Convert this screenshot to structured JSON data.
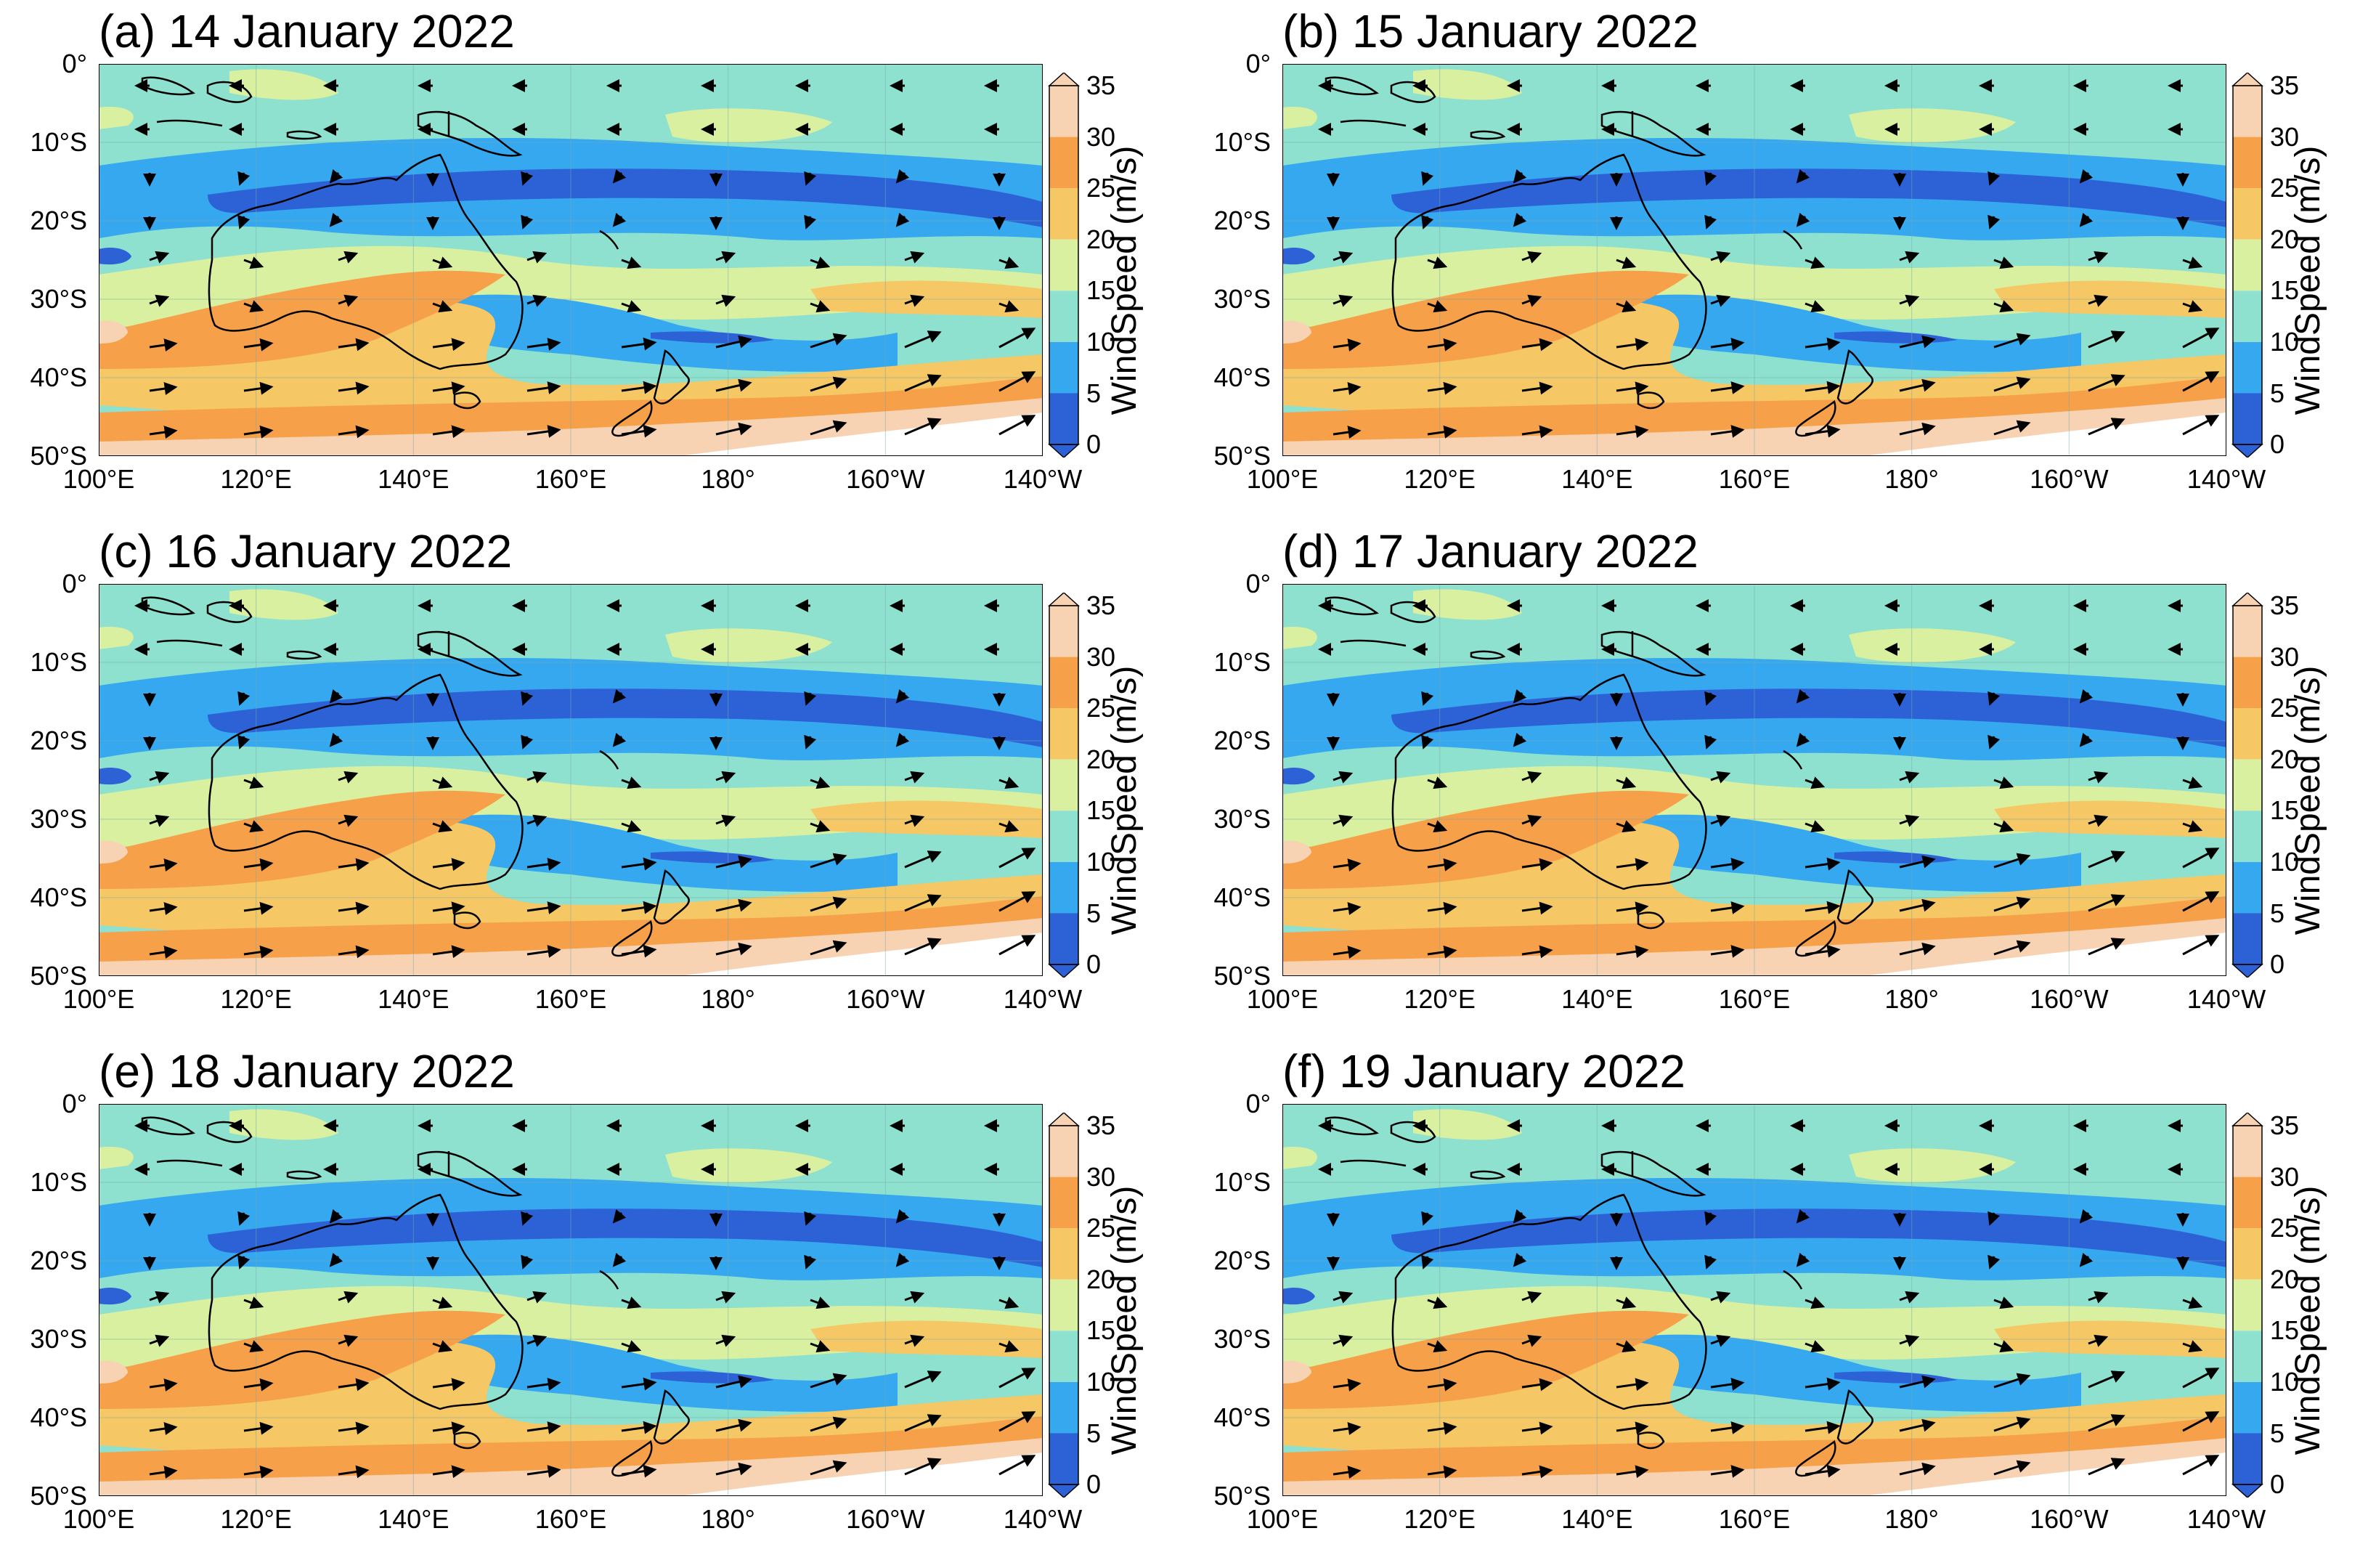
{
  "panels": [
    {
      "title": "(a) 14 January 2022"
    },
    {
      "title": "(b) 15 January 2022"
    },
    {
      "title": "(c) 16 January 2022"
    },
    {
      "title": "(d) 17 January 2022"
    },
    {
      "title": "(e) 18 January 2022"
    },
    {
      "title": "(f) 19 January 2022"
    }
  ],
  "lat_labels": [
    "0°",
    "10°S",
    "20°S",
    "30°S",
    "40°S",
    "50°S"
  ],
  "lon_labels": [
    "100°E",
    "120°E",
    "140°E",
    "160°E",
    "180°",
    "160°W",
    "140°W"
  ],
  "colorbar": {
    "label": "WindSpeed (m/s)",
    "ticks": [
      "35",
      "30",
      "25",
      "20",
      "15",
      "10",
      "5",
      "0"
    ],
    "colors": [
      "#f8d3b3",
      "#f7a04a",
      "#f5c765",
      "#d9f0a0",
      "#8ee0cf",
      "#35a8ef",
      "#2d62d6"
    ],
    "range": [
      0,
      35
    ],
    "interval": 5,
    "extend": "both"
  }
}
